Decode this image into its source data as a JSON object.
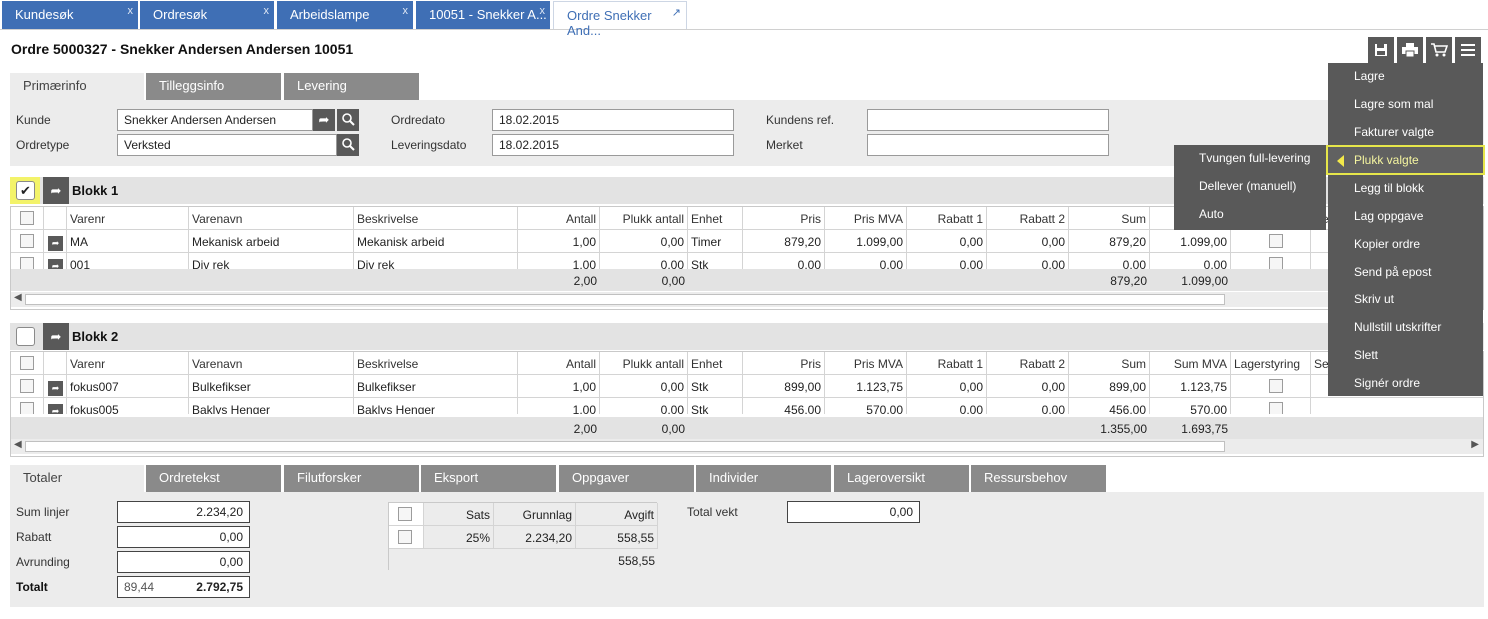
{
  "tabs": [
    {
      "label": "Kundesøk",
      "close": "x"
    },
    {
      "label": "Ordresøk",
      "close": "x"
    },
    {
      "label": "Arbeidslampe",
      "close": "x"
    },
    {
      "label": "10051 - Snekker A...",
      "close": "x"
    },
    {
      "label": "Ordre Snekker And...",
      "close": "↗"
    }
  ],
  "page_title": "Ordre 5000327 - Snekker Andersen Andersen 10051",
  "toolbar_icons": [
    "save-icon",
    "print-icon",
    "cart-icon",
    "menu-icon"
  ],
  "primary_tabs": [
    "Primærinfo",
    "Tilleggsinfo",
    "Levering"
  ],
  "fields": {
    "kunde": {
      "label": "Kunde",
      "value": "Snekker Andersen Andersen"
    },
    "ordretype": {
      "label": "Ordretype",
      "value": "Verksted"
    },
    "ordredato": {
      "label": "Ordredato",
      "value": "18.02.2015"
    },
    "leveringsdato": {
      "label": "Leveringsdato",
      "value": "18.02.2015"
    },
    "kundens_ref": {
      "label": "Kundens ref.",
      "value": ""
    },
    "merket": {
      "label": "Merket",
      "value": ""
    }
  },
  "columns": [
    "Varenr",
    "Varenavn",
    "Beskrivelse",
    "Antall",
    "Plukk antall",
    "Enhet",
    "Pris",
    "Pris MVA",
    "Rabatt 1",
    "Rabatt 2",
    "Sum",
    "Sum MVA",
    "Lagerstyring",
    "Se"
  ],
  "blokk1": {
    "title": "Blokk 1",
    "checked": true,
    "rows": [
      {
        "varenr": "MA",
        "varenavn": "Mekanisk arbeid",
        "beskrivelse": "Mekanisk arbeid",
        "antall": "1,00",
        "plukk": "0,00",
        "enhet": "Timer",
        "pris": "879,20",
        "prismva": "1.099,00",
        "rabatt1": "0,00",
        "rabatt2": "0,00",
        "sum": "879,20",
        "summva": "1.099,00"
      },
      {
        "varenr": "001",
        "varenavn": "Div rek",
        "beskrivelse": "Div rek",
        "antall": "1,00",
        "plukk": "0,00",
        "enhet": "Stk",
        "pris": "0,00",
        "prismva": "0,00",
        "rabatt1": "0,00",
        "rabatt2": "0,00",
        "sum": "0,00",
        "summva": "0,00"
      }
    ],
    "totals": {
      "antall": "2,00",
      "plukk": "0,00",
      "sum": "879,20",
      "summva": "1.099,00"
    }
  },
  "blokk2": {
    "title": "Blokk 2",
    "checked": false,
    "rows": [
      {
        "varenr": "fokus007",
        "varenavn": "Bulkefikser",
        "beskrivelse": "Bulkefikser",
        "antall": "1,00",
        "plukk": "0,00",
        "enhet": "Stk",
        "pris": "899,00",
        "prismva": "1.123,75",
        "rabatt1": "0,00",
        "rabatt2": "0,00",
        "sum": "899,00",
        "summva": "1.123,75"
      },
      {
        "varenr": "fokus005",
        "varenavn": "Baklys Henger",
        "beskrivelse": "Baklys Henger",
        "antall": "1,00",
        "plukk": "0,00",
        "enhet": "Stk",
        "pris": "456,00",
        "prismva": "570,00",
        "rabatt1": "0,00",
        "rabatt2": "0,00",
        "sum": "456,00",
        "summva": "570,00"
      }
    ],
    "totals": {
      "antall": "2,00",
      "plukk": "0,00",
      "sum": "1.355,00",
      "summva": "1.693,75"
    }
  },
  "bottom_tabs": [
    "Totaler",
    "Ordretekst",
    "Filutforsker",
    "Eksport",
    "Oppgaver",
    "Individer",
    "Lageroversikt",
    "Ressursbehov"
  ],
  "totaler": {
    "sum_linjer": {
      "label": "Sum linjer",
      "value": "2.234,20"
    },
    "rabatt": {
      "label": "Rabatt",
      "value": "0,00"
    },
    "avrunding": {
      "label": "Avrunding",
      "value": "0,00"
    },
    "totalt": {
      "label": "Totalt",
      "value_small": "89,44",
      "value": "2.792,75"
    },
    "total_vekt": {
      "label": "Total vekt",
      "value": "0,00"
    }
  },
  "mva": {
    "headers": [
      "Sats",
      "Grunnlag",
      "Avgift"
    ],
    "row": {
      "sats": "25%",
      "grunnlag": "2.234,20",
      "avgift": "558,55"
    },
    "total": "558,55"
  },
  "menu": {
    "items": [
      "Lagre",
      "Lagre som mal",
      "Fakturer valgte",
      "Plukk valgte",
      "Legg til blokk",
      "Lag oppgave",
      "Kopier ordre",
      "Send på epost",
      "Skriv ut",
      "Nullstill utskrifter",
      "Slett",
      "Signér ordre"
    ],
    "selected": "Plukk valgte"
  },
  "submenu": {
    "items": [
      "Tvungen full-levering",
      "Dellever (manuell)",
      "Auto"
    ]
  },
  "colors": {
    "tab_blue": "#3f6fb5",
    "button_dark": "#595959",
    "highlight_yellow": "#f3f36a"
  }
}
